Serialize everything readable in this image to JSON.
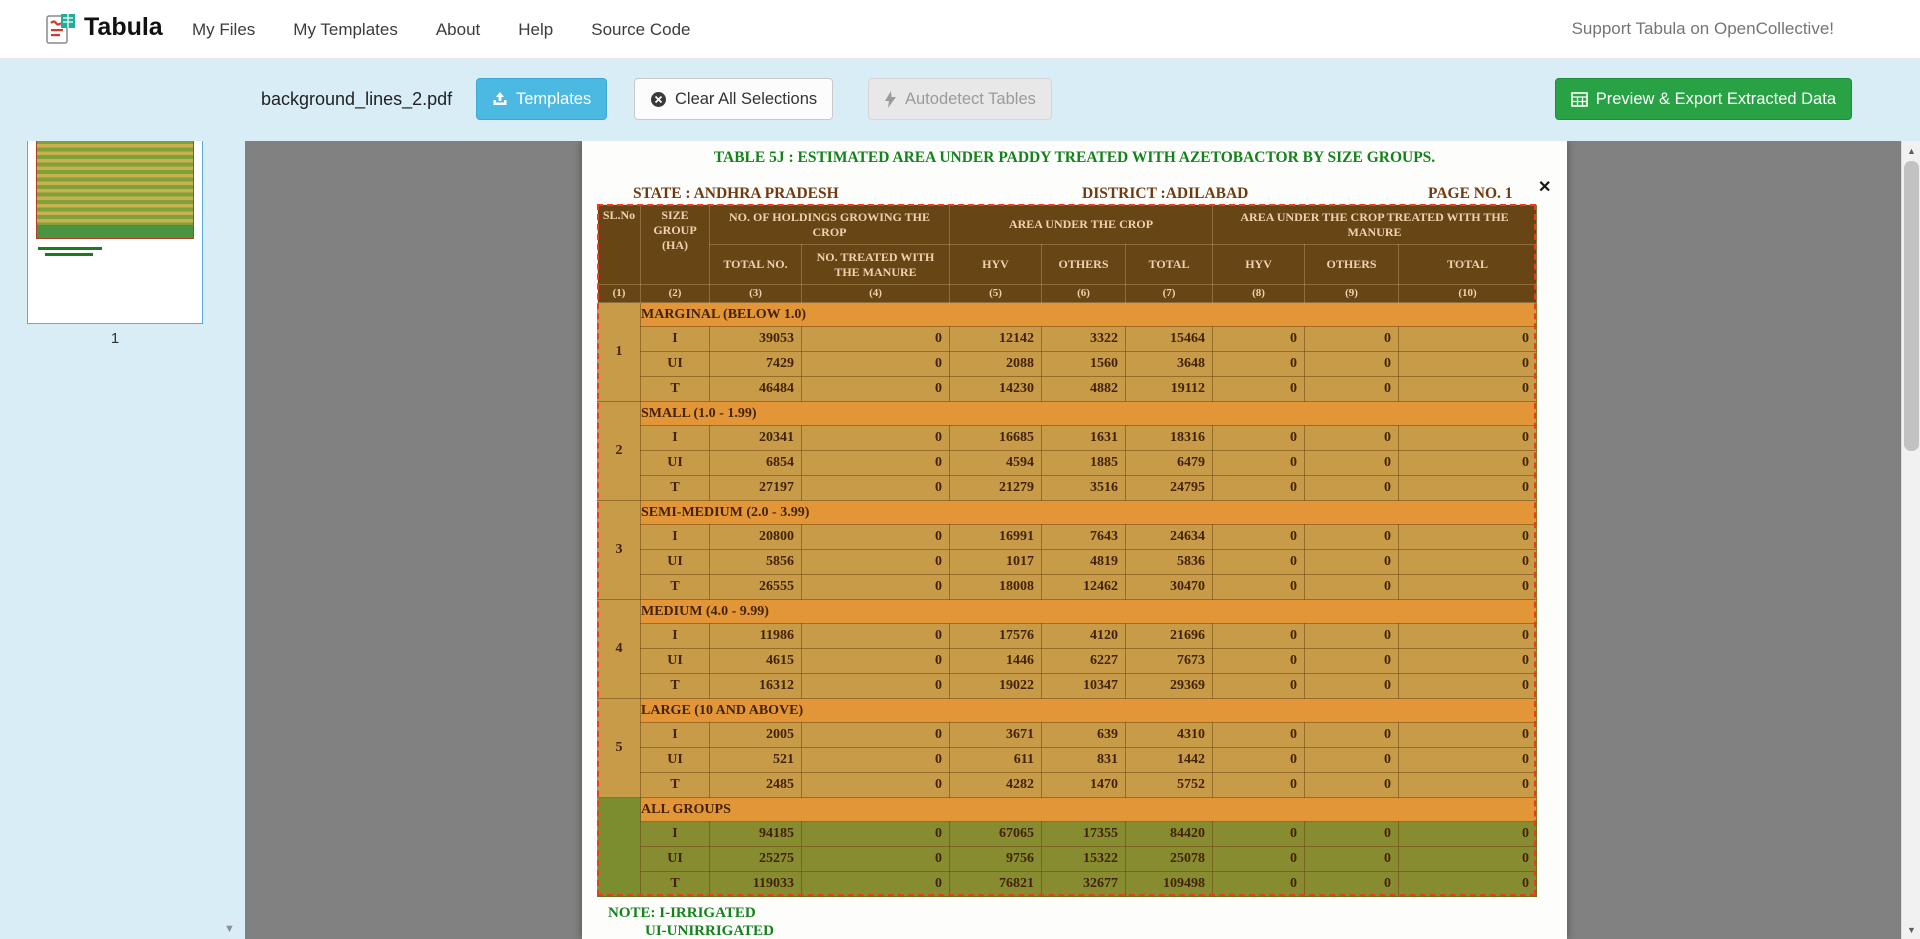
{
  "icons": {
    "up": "▲",
    "down": "▼",
    "close": "✕"
  },
  "navbar": {
    "brand": "Tabula",
    "links": [
      "My Files",
      "My Templates",
      "About",
      "Help",
      "Source Code"
    ],
    "support": "Support Tabula on OpenCollective!"
  },
  "toolbar": {
    "filename": "background_lines_2.pdf",
    "templates_label": "Templates",
    "clear_label": "Clear All Selections",
    "autodetect_label": "Autodetect Tables",
    "export_label": "Preview & Export Extracted Data"
  },
  "sidebar": {
    "page_number": "1"
  },
  "page": {
    "title": "TABLE 5J : ESTIMATED AREA UNDER PADDY  TREATED WITH AZETOBACTOR BY SIZE GROUPS.",
    "state": "STATE : ANDHRA PRADESH",
    "district": "DISTRICT :ADILABAD",
    "page_no": "PAGE NO. 1",
    "note1": "NOTE: I-IRRIGATED",
    "note2": "UI-UNIRRIGATED"
  },
  "table": {
    "h_slno": "SL.No",
    "h_size_group": "SIZE GROUP (HA)",
    "h_holdings": "NO. OF HOLDINGS GROWING THE CROP",
    "h_area": "AREA UNDER THE CROP",
    "h_area_treated": "AREA UNDER THE CROP TREATED WITH THE  MANURE",
    "h_total_no": "TOTAL NO.",
    "h_no_treated": "NO. TREATED WITH THE  MANURE",
    "h_hyv": "HYV",
    "h_others": "OTHERS",
    "h_total": "TOTAL",
    "col_numbers": [
      "(1)",
      "(2)",
      "(3)",
      "(4)",
      "(5)",
      "(6)",
      "(7)",
      "(8)",
      "(9)",
      "(10)"
    ],
    "sections": [
      {
        "sl": "1",
        "group": "MARGINAL (BELOW 1.0)",
        "green": false,
        "rows": [
          [
            "I",
            "39053",
            "0",
            "12142",
            "3322",
            "15464",
            "0",
            "0",
            "0"
          ],
          [
            "UI",
            "7429",
            "0",
            "2088",
            "1560",
            "3648",
            "0",
            "0",
            "0"
          ],
          [
            "T",
            "46484",
            "0",
            "14230",
            "4882",
            "19112",
            "0",
            "0",
            "0"
          ]
        ]
      },
      {
        "sl": "2",
        "group": "SMALL (1.0 - 1.99)",
        "green": false,
        "rows": [
          [
            "I",
            "20341",
            "0",
            "16685",
            "1631",
            "18316",
            "0",
            "0",
            "0"
          ],
          [
            "UI",
            "6854",
            "0",
            "4594",
            "1885",
            "6479",
            "0",
            "0",
            "0"
          ],
          [
            "T",
            "27197",
            "0",
            "21279",
            "3516",
            "24795",
            "0",
            "0",
            "0"
          ]
        ]
      },
      {
        "sl": "3",
        "group": "SEMI-MEDIUM (2.0 - 3.99)",
        "green": false,
        "rows": [
          [
            "I",
            "20800",
            "0",
            "16991",
            "7643",
            "24634",
            "0",
            "0",
            "0"
          ],
          [
            "UI",
            "5856",
            "0",
            "1017",
            "4819",
            "5836",
            "0",
            "0",
            "0"
          ],
          [
            "T",
            "26555",
            "0",
            "18008",
            "12462",
            "30470",
            "0",
            "0",
            "0"
          ]
        ]
      },
      {
        "sl": "4",
        "group": "MEDIUM (4.0 - 9.99)",
        "green": false,
        "rows": [
          [
            "I",
            "11986",
            "0",
            "17576",
            "4120",
            "21696",
            "0",
            "0",
            "0"
          ],
          [
            "UI",
            "4615",
            "0",
            "1446",
            "6227",
            "7673",
            "0",
            "0",
            "0"
          ],
          [
            "T",
            "16312",
            "0",
            "19022",
            "10347",
            "29369",
            "0",
            "0",
            "0"
          ]
        ]
      },
      {
        "sl": "5",
        "group": "LARGE (10 AND ABOVE)",
        "green": false,
        "rows": [
          [
            "I",
            "2005",
            "0",
            "3671",
            "639",
            "4310",
            "0",
            "0",
            "0"
          ],
          [
            "UI",
            "521",
            "0",
            "611",
            "831",
            "1442",
            "0",
            "0",
            "0"
          ],
          [
            "T",
            "2485",
            "0",
            "4282",
            "1470",
            "5752",
            "0",
            "0",
            "0"
          ]
        ]
      },
      {
        "sl": "",
        "group": "ALL GROUPS",
        "green": true,
        "rows": [
          [
            "I",
            "94185",
            "0",
            "67065",
            "17355",
            "84420",
            "0",
            "0",
            "0"
          ],
          [
            "UI",
            "25275",
            "0",
            "9756",
            "15322",
            "25078",
            "0",
            "0",
            "0"
          ],
          [
            "T",
            "119033",
            "0",
            "76821",
            "32677",
            "109498",
            "0",
            "0",
            "0"
          ]
        ]
      }
    ]
  }
}
